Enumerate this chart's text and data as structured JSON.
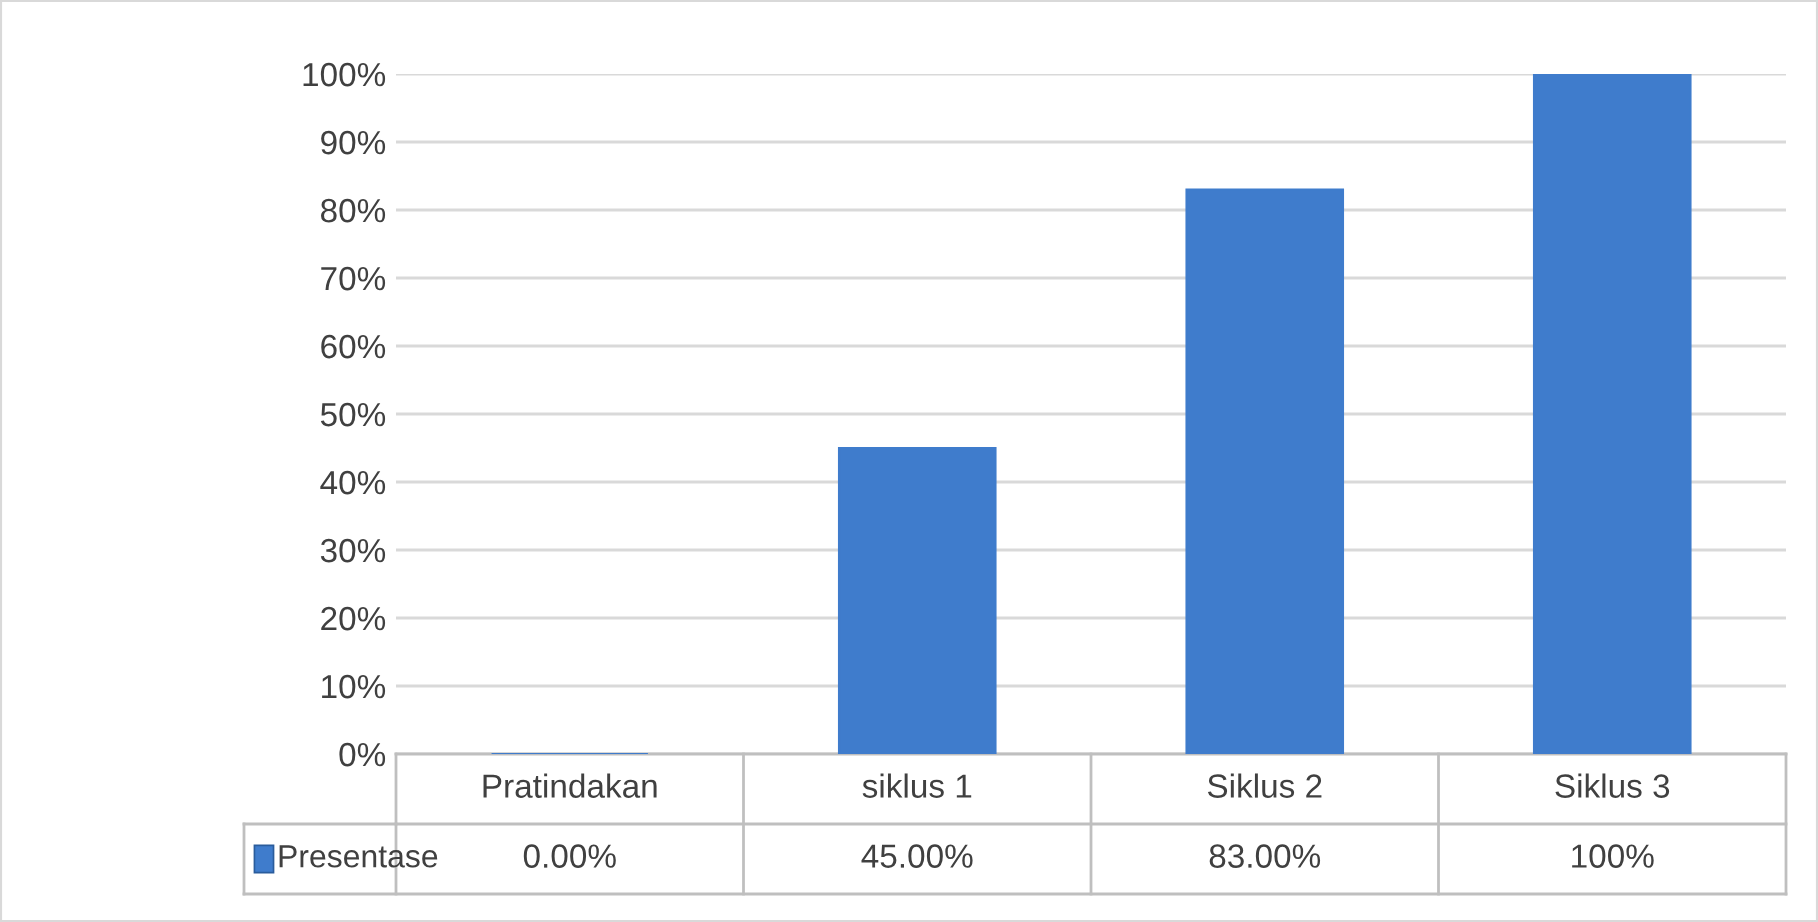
{
  "chart_data": {
    "type": "bar",
    "categories": [
      "Pratindakan",
      "siklus 1",
      "Siklus 2",
      "Siklus 3"
    ],
    "series": [
      {
        "name": "Presentase",
        "color": "#3f7ccc",
        "values": [
          0,
          45,
          83,
          100
        ],
        "value_labels": [
          "0.00%",
          "45.00%",
          "83.00%",
          "100%"
        ]
      }
    ],
    "ylim": [
      0,
      100
    ],
    "yticks": [
      {
        "value": 0,
        "label": "0%"
      },
      {
        "value": 10,
        "label": "10%"
      },
      {
        "value": 20,
        "label": "20%"
      },
      {
        "value": 30,
        "label": "30%"
      },
      {
        "value": 40,
        "label": "40%"
      },
      {
        "value": 50,
        "label": "50%"
      },
      {
        "value": 60,
        "label": "60%"
      },
      {
        "value": 70,
        "label": "70%"
      },
      {
        "value": 80,
        "label": "80%"
      },
      {
        "value": 90,
        "label": "90%"
      },
      {
        "value": 100,
        "label": "100%"
      }
    ],
    "grid": "y",
    "legend": "bottom"
  }
}
